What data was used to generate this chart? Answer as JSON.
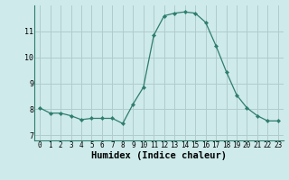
{
  "x": [
    0,
    1,
    2,
    3,
    4,
    5,
    6,
    7,
    8,
    9,
    10,
    11,
    12,
    13,
    14,
    15,
    16,
    17,
    18,
    19,
    20,
    21,
    22,
    23
  ],
  "y": [
    8.05,
    7.85,
    7.85,
    7.75,
    7.6,
    7.65,
    7.65,
    7.65,
    7.45,
    8.2,
    8.85,
    10.85,
    11.6,
    11.7,
    11.75,
    11.7,
    11.35,
    10.45,
    9.45,
    8.55,
    8.05,
    7.75,
    7.55,
    7.55
  ],
  "line_color": "#2e7d6e",
  "marker": "D",
  "marker_size": 2.2,
  "bg_color": "#ceeaea",
  "grid_color": "#b0cccc",
  "xlabel": "Humidex (Indice chaleur)",
  "ylim": [
    6.8,
    12.0
  ],
  "xlim": [
    -0.5,
    23.5
  ],
  "yticks": [
    7,
    8,
    9,
    10,
    11
  ],
  "xticks": [
    0,
    1,
    2,
    3,
    4,
    5,
    6,
    7,
    8,
    9,
    10,
    11,
    12,
    13,
    14,
    15,
    16,
    17,
    18,
    19,
    20,
    21,
    22,
    23
  ],
  "tick_fontsize": 5.5,
  "label_fontsize": 7.5
}
